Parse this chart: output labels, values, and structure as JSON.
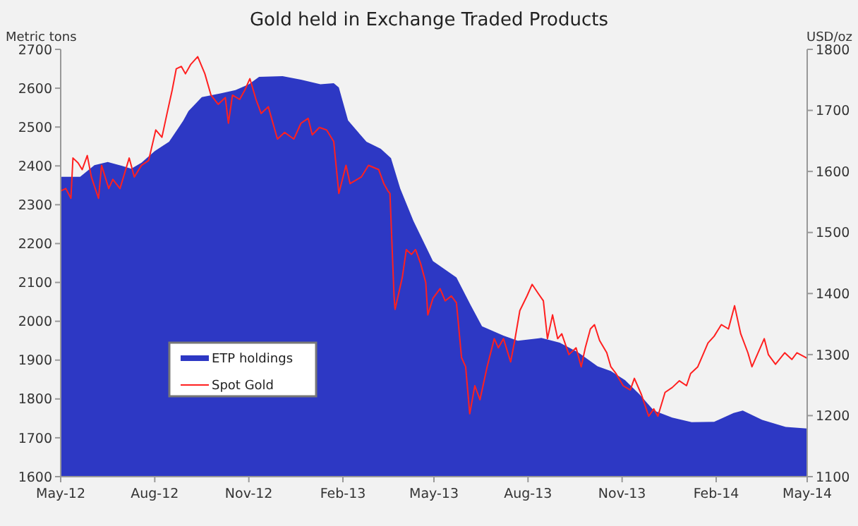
{
  "chart_data": {
    "type": "area",
    "title": "Gold held in Exchange Traded Products",
    "ylabel": "Metric tons",
    "y2label": "USD/oz",
    "xlim": [
      "2012-05-01",
      "2014-05-01"
    ],
    "xticks": [
      {
        "value": "2012-05-01",
        "label": "May-12"
      },
      {
        "value": "2012-08-01",
        "label": "Aug-12"
      },
      {
        "value": "2012-11-01",
        "label": "Nov-12"
      },
      {
        "value": "2013-02-01",
        "label": "Feb-13"
      },
      {
        "value": "2013-05-01",
        "label": "May-13"
      },
      {
        "value": "2013-08-01",
        "label": "Aug-13"
      },
      {
        "value": "2013-11-01",
        "label": "Nov-13"
      },
      {
        "value": "2014-02-01",
        "label": "Feb-14"
      },
      {
        "value": "2014-05-01",
        "label": "May-14"
      }
    ],
    "ylim": [
      1600,
      2700
    ],
    "yticks": [
      1600,
      1700,
      1800,
      1900,
      2000,
      2100,
      2200,
      2300,
      2400,
      2500,
      2600,
      2700
    ],
    "y2lim": [
      1100,
      1800
    ],
    "y2ticks": [
      1100,
      1200,
      1300,
      1400,
      1500,
      1600,
      1700,
      1800
    ],
    "grid": false,
    "legend": "left",
    "series": [
      {
        "name": "ETP holdings",
        "type": "area",
        "color": "#2d38c4",
        "x": [
          "2012-05-01",
          "2012-05-20",
          "2012-06-03",
          "2012-06-16",
          "2012-06-30",
          "2012-07-09",
          "2012-07-19",
          "2012-08-01",
          "2012-08-15",
          "2012-08-29",
          "2012-09-03",
          "2012-09-16",
          "2012-10-05",
          "2012-10-19",
          "2012-11-01",
          "2012-11-11",
          "2012-12-04",
          "2012-12-22",
          "2013-01-10",
          "2013-01-23",
          "2013-01-28",
          "2013-02-06",
          "2013-02-24",
          "2013-03-10",
          "2013-03-20",
          "2013-03-29",
          "2013-04-11",
          "2013-04-30",
          "2013-05-23",
          "2013-06-06",
          "2013-06-17",
          "2013-07-08",
          "2013-07-22",
          "2013-08-14",
          "2013-09-01",
          "2013-09-19",
          "2013-10-08",
          "2013-10-21",
          "2013-11-04",
          "2013-11-18",
          "2013-12-02",
          "2013-12-20",
          "2014-01-08",
          "2014-01-30",
          "2014-02-18",
          "2014-02-27",
          "2014-03-18",
          "2014-04-10",
          "2014-05-01"
        ],
        "values": [
          2372,
          2372,
          2402,
          2410,
          2400,
          2393,
          2408,
          2438,
          2462,
          2517,
          2541,
          2577,
          2587,
          2595,
          2610,
          2629,
          2631,
          2622,
          2610,
          2613,
          2602,
          2517,
          2462,
          2444,
          2420,
          2342,
          2258,
          2155,
          2113,
          2041,
          1987,
          1963,
          1950,
          1957,
          1945,
          1920,
          1884,
          1872,
          1848,
          1812,
          1770,
          1752,
          1740,
          1741,
          1764,
          1770,
          1746,
          1728,
          1724
        ]
      },
      {
        "name": "Spot Gold",
        "type": "line",
        "axis": "y2",
        "color": "#ff2020",
        "x": [
          "2012-05-01",
          "2012-05-06",
          "2012-05-11",
          "2012-05-13",
          "2012-05-18",
          "2012-05-22",
          "2012-05-27",
          "2012-05-31",
          "2012-06-07",
          "2012-06-10",
          "2012-06-17",
          "2012-06-21",
          "2012-06-28",
          "2012-07-07",
          "2012-07-12",
          "2012-07-19",
          "2012-07-26",
          "2012-08-02",
          "2012-08-08",
          "2012-08-13",
          "2012-08-18",
          "2012-08-22",
          "2012-08-27",
          "2012-08-31",
          "2012-09-05",
          "2012-09-12",
          "2012-09-19",
          "2012-09-25",
          "2012-10-02",
          "2012-10-09",
          "2012-10-12",
          "2012-10-16",
          "2012-10-23",
          "2012-10-28",
          "2012-11-02",
          "2012-11-08",
          "2012-11-13",
          "2012-11-20",
          "2012-11-29",
          "2012-12-06",
          "2012-12-15",
          "2012-12-22",
          "2012-12-29",
          "2013-01-02",
          "2013-01-09",
          "2013-01-16",
          "2013-01-23",
          "2013-01-28",
          "2013-02-04",
          "2013-02-08",
          "2013-02-19",
          "2013-02-26",
          "2013-03-08",
          "2013-03-13",
          "2013-03-17",
          "2013-03-19",
          "2013-03-23",
          "2013-03-24",
          "2013-03-31",
          "2013-04-04",
          "2013-04-09",
          "2013-04-13",
          "2013-04-18",
          "2013-04-23",
          "2013-04-25",
          "2013-04-30",
          "2013-05-07",
          "2013-05-12",
          "2013-05-18",
          "2013-05-23",
          "2013-05-28",
          "2013-06-01",
          "2013-06-05",
          "2013-06-10",
          "2013-06-15",
          "2013-06-22",
          "2013-06-29",
          "2013-07-03",
          "2013-07-08",
          "2013-07-15",
          "2013-07-19",
          "2013-07-24",
          "2013-07-31",
          "2013-08-05",
          "2013-08-11",
          "2013-08-16",
          "2013-08-20",
          "2013-08-25",
          "2013-08-30",
          "2013-09-03",
          "2013-09-10",
          "2013-09-17",
          "2013-09-22",
          "2013-09-26",
          "2013-10-01",
          "2013-10-05",
          "2013-10-10",
          "2013-10-17",
          "2013-10-21",
          "2013-10-26",
          "2013-11-02",
          "2013-11-09",
          "2013-11-13",
          "2013-11-20",
          "2013-11-27",
          "2013-12-02",
          "2013-12-06",
          "2013-12-13",
          "2013-12-20",
          "2013-12-27",
          "2014-01-03",
          "2014-01-07",
          "2014-01-14",
          "2014-01-24",
          "2014-01-30",
          "2014-02-06",
          "2014-02-13",
          "2014-02-19",
          "2014-02-25",
          "2014-03-04",
          "2014-03-08",
          "2014-03-15",
          "2014-03-20",
          "2014-03-24",
          "2014-03-31",
          "2014-04-09",
          "2014-04-16",
          "2014-04-21",
          "2014-05-01"
        ],
        "values": [
          1568,
          1572,
          1556,
          1622,
          1614,
          1603,
          1626,
          1591,
          1556,
          1610,
          1572,
          1587,
          1572,
          1622,
          1591,
          1610,
          1618,
          1668,
          1656,
          1695,
          1733,
          1768,
          1772,
          1760,
          1775,
          1788,
          1760,
          1725,
          1710,
          1721,
          1679,
          1725,
          1718,
          1733,
          1752,
          1718,
          1695,
          1706,
          1653,
          1664,
          1653,
          1679,
          1687,
          1660,
          1672,
          1668,
          1649,
          1564,
          1610,
          1580,
          1591,
          1610,
          1603,
          1580,
          1568,
          1564,
          1395,
          1374,
          1426,
          1472,
          1464,
          1472,
          1449,
          1418,
          1365,
          1392,
          1408,
          1388,
          1396,
          1385,
          1295,
          1280,
          1203,
          1249,
          1226,
          1280,
          1326,
          1311,
          1326,
          1288,
          1323,
          1372,
          1396,
          1415,
          1400,
          1388,
          1326,
          1365,
          1326,
          1334,
          1300,
          1311,
          1280,
          1311,
          1342,
          1349,
          1323,
          1303,
          1280,
          1269,
          1249,
          1242,
          1261,
          1234,
          1199,
          1211,
          1199,
          1238,
          1246,
          1257,
          1249,
          1269,
          1280,
          1319,
          1330,
          1349,
          1342,
          1380,
          1334,
          1303,
          1280,
          1307,
          1326,
          1300,
          1284,
          1303,
          1292,
          1303,
          1294
        ]
      }
    ]
  }
}
